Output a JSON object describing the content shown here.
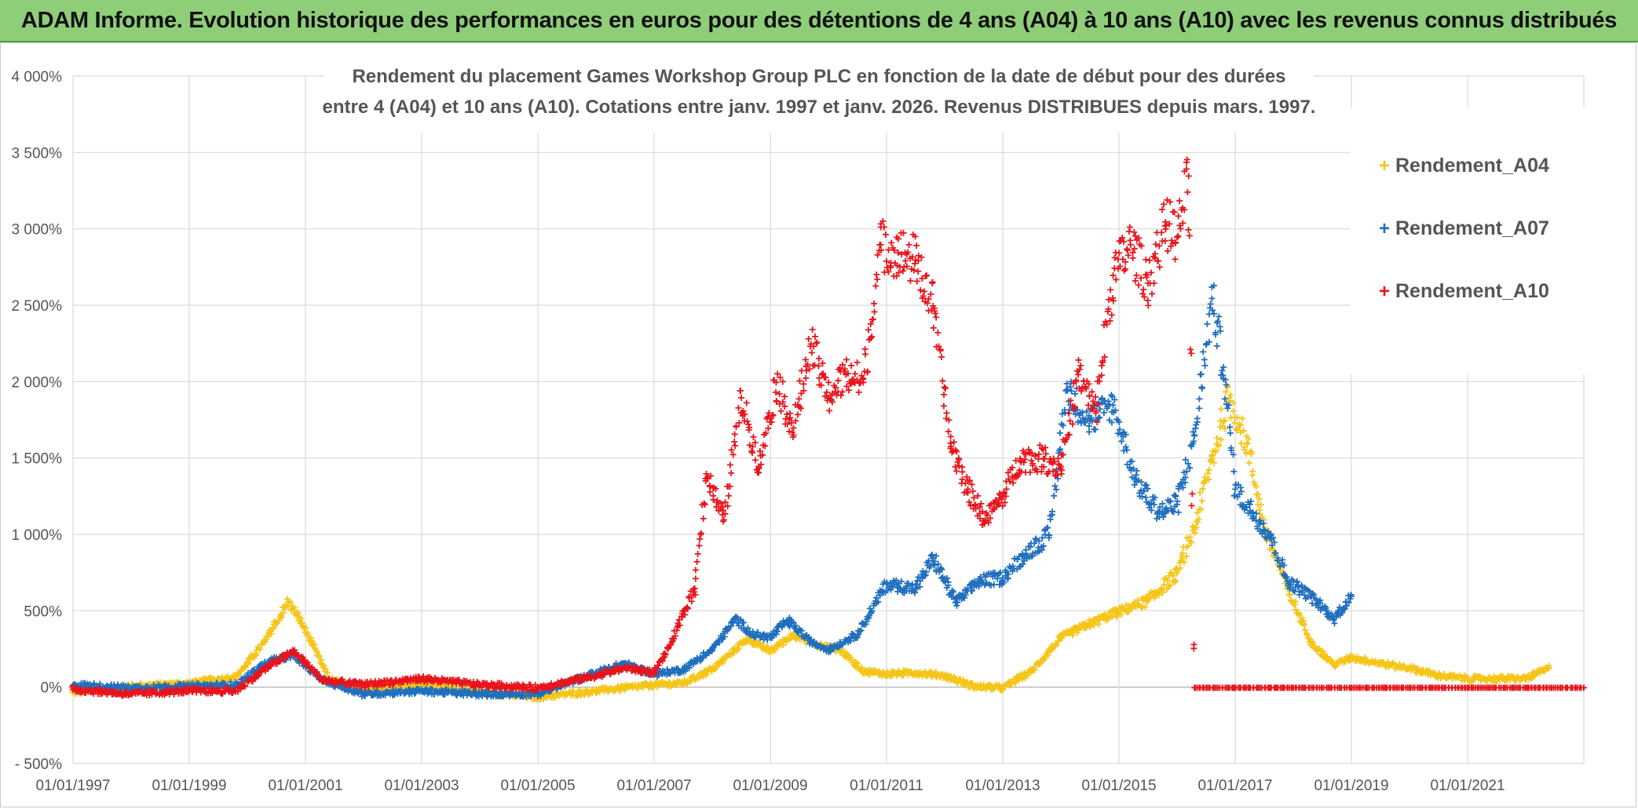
{
  "banner": {
    "title": "ADAM Informe. Evolution historique des performances en euros pour des détentions de 4 ans (A04) à 10 ans (A10) avec les revenus connus distribués"
  },
  "colors": {
    "banner_bg": "#8fce79",
    "A04": "#f5c518",
    "A07": "#1f6fbf",
    "A10": "#e8141b",
    "grid": "#d9d9d9"
  },
  "chart_data": {
    "type": "scatter",
    "title_lines": [
      "Rendement du placement Games Workshop Group PLC en fonction de la date de début pour des durées",
      "entre 4 (A04) et 10 ans (A10). Cotations entre janv. 1997 et janv. 2026. Revenus DISTRIBUES depuis mars. 1997."
    ],
    "xlabel": "",
    "ylabel": "",
    "xlim": [
      1997.0,
      2023.0
    ],
    "ylim": [
      -500,
      4000
    ],
    "x_ticks": [
      1997,
      1999,
      2001,
      2003,
      2005,
      2007,
      2009,
      2011,
      2013,
      2015,
      2017,
      2019,
      2021
    ],
    "x_tick_labels": [
      "01/01/1997",
      "01/01/1999",
      "01/01/2001",
      "01/01/2003",
      "01/01/2005",
      "01/01/2007",
      "01/01/2009",
      "01/01/2011",
      "01/01/2013",
      "01/01/2015",
      "01/01/2017",
      "01/01/2019",
      "01/01/2021"
    ],
    "y_ticks": [
      -500,
      0,
      500,
      1000,
      1500,
      2000,
      2500,
      3000,
      3500,
      4000
    ],
    "y_tick_labels": [
      "- 500%",
      "0%",
      "500%",
      "1 000%",
      "1 500%",
      "2 000%",
      "2 500%",
      "3 000%",
      "3 500%",
      "4 000%"
    ],
    "grid": true,
    "legend_position": "top-right",
    "series": [
      {
        "name": "Rendement_A04",
        "x": [
          1997.0,
          1998.0,
          1999.0,
          1999.8,
          2000.3,
          2000.7,
          2000.9,
          2001.1,
          2001.4,
          2002.0,
          2003.0,
          2004.0,
          2005.0,
          2006.0,
          2007.0,
          2007.5,
          2008.0,
          2008.6,
          2009.0,
          2009.4,
          2009.8,
          2010.2,
          2010.6,
          2011.0,
          2011.5,
          2012.0,
          2012.5,
          2013.0,
          2013.5,
          2014.0,
          2014.5,
          2015.0,
          2015.5,
          2016.0,
          2016.3,
          2016.6,
          2016.9,
          2017.2,
          2017.5,
          2017.9,
          2018.3,
          2018.7,
          2019.0,
          2019.5,
          2020.0,
          2020.5,
          2021.0,
          2021.5,
          2022.0,
          2022.4
        ],
        "y": [
          -30,
          10,
          30,
          70,
          300,
          560,
          450,
          300,
          60,
          -20,
          20,
          -30,
          -60,
          -20,
          20,
          30,
          120,
          320,
          240,
          350,
          280,
          250,
          110,
          90,
          100,
          80,
          10,
          0,
          110,
          330,
          420,
          500,
          570,
          750,
          1050,
          1500,
          1900,
          1600,
          1050,
          650,
          300,
          150,
          200,
          160,
          130,
          80,
          60,
          60,
          60,
          130
        ]
      },
      {
        "name": "Rendement_A07",
        "x": [
          1997.0,
          1998.0,
          1999.0,
          1999.8,
          2000.4,
          2000.8,
          2001.3,
          2002.0,
          2003.0,
          2004.0,
          2005.0,
          2006.0,
          2006.5,
          2007.0,
          2007.5,
          2008.0,
          2008.4,
          2008.7,
          2009.0,
          2009.3,
          2009.7,
          2010.0,
          2010.5,
          2011.0,
          2011.5,
          2011.8,
          2012.2,
          2012.6,
          2013.0,
          2013.4,
          2013.8,
          2014.1,
          2014.5,
          2014.9,
          2015.3,
          2015.7,
          2016.0,
          2016.3,
          2016.6,
          2016.8,
          2017.0,
          2017.3,
          2017.6,
          2017.9,
          2018.3,
          2018.7,
          2019.0
        ],
        "y": [
          20,
          0,
          10,
          20,
          180,
          210,
          50,
          -40,
          -20,
          -40,
          -40,
          100,
          160,
          90,
          120,
          250,
          450,
          350,
          330,
          440,
          300,
          250,
          350,
          680,
          650,
          850,
          560,
          700,
          720,
          880,
          1000,
          1950,
          1750,
          1850,
          1350,
          1150,
          1200,
          1650,
          2550,
          2100,
          1300,
          1150,
          1000,
          700,
          600,
          450,
          600
        ]
      },
      {
        "name": "Rendement_A10",
        "x": [
          1997.0,
          1998.0,
          1999.0,
          1999.8,
          2000.4,
          2000.8,
          2001.3,
          2002.0,
          2003.0,
          2004.0,
          2005.0,
          2006.0,
          2006.5,
          2007.0,
          2007.3,
          2007.7,
          2007.9,
          2008.2,
          2008.5,
          2008.8,
          2009.1,
          2009.4,
          2009.7,
          2010.0,
          2010.3,
          2010.6,
          2010.9,
          2011.2,
          2011.5,
          2011.8,
          2012.1,
          2012.4,
          2012.7,
          2013.0,
          2013.3,
          2013.7,
          2014.0,
          2014.3,
          2014.6,
          2014.9,
          2015.2,
          2015.5,
          2015.8,
          2016.0,
          2016.2,
          2016.3,
          2017.0,
          2018.0,
          2019.0,
          2020.0,
          2021.0,
          2022.0,
          2023.0
        ],
        "y": [
          -10,
          -40,
          -20,
          -20,
          150,
          240,
          50,
          20,
          60,
          20,
          0,
          80,
          130,
          100,
          300,
          650,
          1400,
          1100,
          1900,
          1450,
          2000,
          1700,
          2250,
          1900,
          2050,
          2000,
          2900,
          2850,
          2800,
          2500,
          1600,
          1300,
          1100,
          1250,
          1500,
          1500,
          1450,
          2050,
          1800,
          2700,
          2900,
          2650,
          3050,
          2950,
          3350,
          0,
          0,
          0,
          0,
          0,
          0,
          0,
          0
        ]
      }
    ]
  }
}
